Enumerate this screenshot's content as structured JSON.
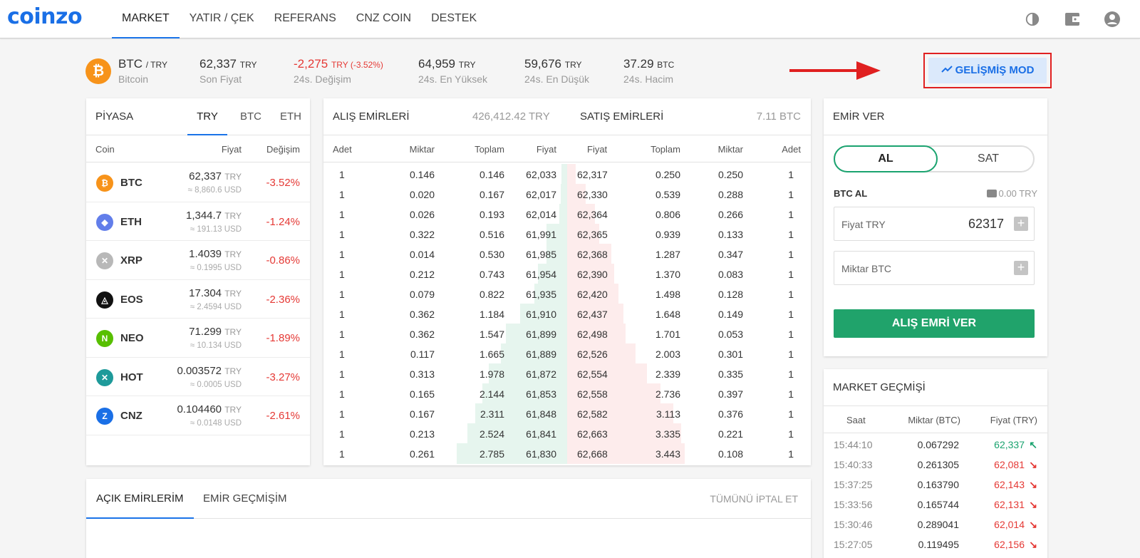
{
  "brand": {
    "logo": "coinzo"
  },
  "nav": [
    "MARKET",
    "YATIR / ÇEK",
    "REFERANS",
    "CNZ COIN",
    "DESTEK"
  ],
  "top_icons": [
    "theme-toggle-icon",
    "wallet-icon",
    "account-icon"
  ],
  "ticker": {
    "coin_icon": "₿",
    "symbol": "BTC",
    "pair": "/ TRY",
    "name": "Bitcoin",
    "last_price": "62,337",
    "last_price_unit": "TRY",
    "last_price_label": "Son Fiyat",
    "change": "-2,275",
    "change_unit": "TRY (-3.52%)",
    "change_label": "24s. Değişim",
    "high": "64,959",
    "high_unit": "TRY",
    "high_label": "24s. En Yüksek",
    "low": "59,676",
    "low_unit": "TRY",
    "low_label": "24s. En Düşük",
    "volume": "37.29",
    "volume_unit": "BTC",
    "volume_label": "24s. Hacim"
  },
  "advanced_mode": {
    "label": "GELİŞMİŞ MOD",
    "icon": "trending-up-icon"
  },
  "market": {
    "title": "PİYASA",
    "tabs": [
      "TRY",
      "BTC",
      "ETH"
    ],
    "columns": [
      "Coin",
      "Fiyat",
      "Değişim"
    ],
    "rows": [
      {
        "symbol": "BTC",
        "icon": "₿",
        "color": "#f7931a",
        "price": "62,337",
        "unit": "TRY",
        "usd": "≈ 8,860.6 USD",
        "change": "-3.52%"
      },
      {
        "symbol": "ETH",
        "icon": "◆",
        "color": "#627eea",
        "price": "1,344.7",
        "unit": "TRY",
        "usd": "≈ 191.13 USD",
        "change": "-1.24%"
      },
      {
        "symbol": "XRP",
        "icon": "✕",
        "color": "#b8b8b8",
        "price": "1.4039",
        "unit": "TRY",
        "usd": "≈ 0.1995 USD",
        "change": "-0.86%"
      },
      {
        "symbol": "EOS",
        "icon": "◬",
        "color": "#111111",
        "price": "17.304",
        "unit": "TRY",
        "usd": "≈ 2.4594 USD",
        "change": "-2.36%"
      },
      {
        "symbol": "NEO",
        "icon": "N",
        "color": "#58bf00",
        "price": "71.299",
        "unit": "TRY",
        "usd": "≈ 10.134 USD",
        "change": "-1.89%"
      },
      {
        "symbol": "HOT",
        "icon": "✕",
        "color": "#1e9a9a",
        "price": "0.003572",
        "unit": "TRY",
        "usd": "≈ 0.0005 USD",
        "change": "-3.27%"
      },
      {
        "symbol": "CNZ",
        "icon": "Z",
        "color": "#1a6fe6",
        "price": "0.104460",
        "unit": "TRY",
        "usd": "≈ 0.0148 USD",
        "change": "-2.61%"
      }
    ]
  },
  "orderbook": {
    "buy_title": "ALIŞ EMİRLERİ",
    "buy_total": "426,412.42 TRY",
    "sell_title": "SATIŞ EMİRLERİ",
    "sell_total": "7.11 BTC",
    "columns": [
      "Adet",
      "Miktar",
      "Toplam",
      "Fiyat",
      "Fiyat",
      "Toplam",
      "Miktar",
      "Adet"
    ],
    "rows": [
      [
        "1",
        "0.146",
        "0.146",
        "62,033",
        "62,317",
        "0.250",
        "0.250",
        "1"
      ],
      [
        "1",
        "0.020",
        "0.167",
        "62,017",
        "62,330",
        "0.539",
        "0.288",
        "1"
      ],
      [
        "1",
        "0.026",
        "0.193",
        "62,014",
        "62,364",
        "0.806",
        "0.266",
        "1"
      ],
      [
        "1",
        "0.322",
        "0.516",
        "61,991",
        "62,365",
        "0.939",
        "0.133",
        "1"
      ],
      [
        "1",
        "0.014",
        "0.530",
        "61,985",
        "62,368",
        "1.287",
        "0.347",
        "1"
      ],
      [
        "1",
        "0.212",
        "0.743",
        "61,954",
        "62,390",
        "1.370",
        "0.083",
        "1"
      ],
      [
        "1",
        "0.079",
        "0.822",
        "61,935",
        "62,420",
        "1.498",
        "0.128",
        "1"
      ],
      [
        "1",
        "0.362",
        "1.184",
        "61,910",
        "62,437",
        "1.648",
        "0.149",
        "1"
      ],
      [
        "1",
        "0.362",
        "1.547",
        "61,899",
        "62,498",
        "1.701",
        "0.053",
        "1"
      ],
      [
        "1",
        "0.117",
        "1.665",
        "61,889",
        "62,526",
        "2.003",
        "0.301",
        "1"
      ],
      [
        "1",
        "0.313",
        "1.978",
        "61,872",
        "62,554",
        "2.339",
        "0.335",
        "1"
      ],
      [
        "1",
        "0.165",
        "2.144",
        "61,853",
        "62,558",
        "2.736",
        "0.397",
        "1"
      ],
      [
        "1",
        "0.167",
        "2.311",
        "61,848",
        "62,582",
        "3.113",
        "0.376",
        "1"
      ],
      [
        "1",
        "0.213",
        "2.524",
        "61,841",
        "62,663",
        "3.335",
        "0.221",
        "1"
      ],
      [
        "1",
        "0.261",
        "2.785",
        "61,830",
        "62,668",
        "3.443",
        "0.108",
        "1"
      ]
    ]
  },
  "order_form": {
    "title": "EMİR VER",
    "buy_tab": "AL",
    "sell_tab": "SAT",
    "subtitle": "BTC AL",
    "balance": "0.00 TRY",
    "price_label": "Fiyat TRY",
    "price_value": "62317",
    "amount_label": "Miktar BTC",
    "amount_value": "",
    "submit": "ALIŞ EMRİ VER"
  },
  "history": {
    "title": "MARKET GEÇMİŞİ",
    "columns": [
      "Saat",
      "Miktar (BTC)",
      "Fiyat (TRY)"
    ],
    "rows": [
      {
        "time": "15:44:10",
        "amount": "0.067292",
        "price": "62,337",
        "dir": "up"
      },
      {
        "time": "15:40:33",
        "amount": "0.261305",
        "price": "62,081",
        "dir": "down"
      },
      {
        "time": "15:37:25",
        "amount": "0.163790",
        "price": "62,143",
        "dir": "down"
      },
      {
        "time": "15:33:56",
        "amount": "0.165744",
        "price": "62,131",
        "dir": "down"
      },
      {
        "time": "15:30:46",
        "amount": "0.289041",
        "price": "62,014",
        "dir": "down"
      },
      {
        "time": "15:27:05",
        "amount": "0.119495",
        "price": "62,156",
        "dir": "down"
      }
    ]
  },
  "open_orders": {
    "tabs": [
      "AÇIK EMİRLERİM",
      "EMİR GEÇMİŞİM"
    ],
    "cancel_all": "TÜMÜNÜ İPTAL ET"
  }
}
